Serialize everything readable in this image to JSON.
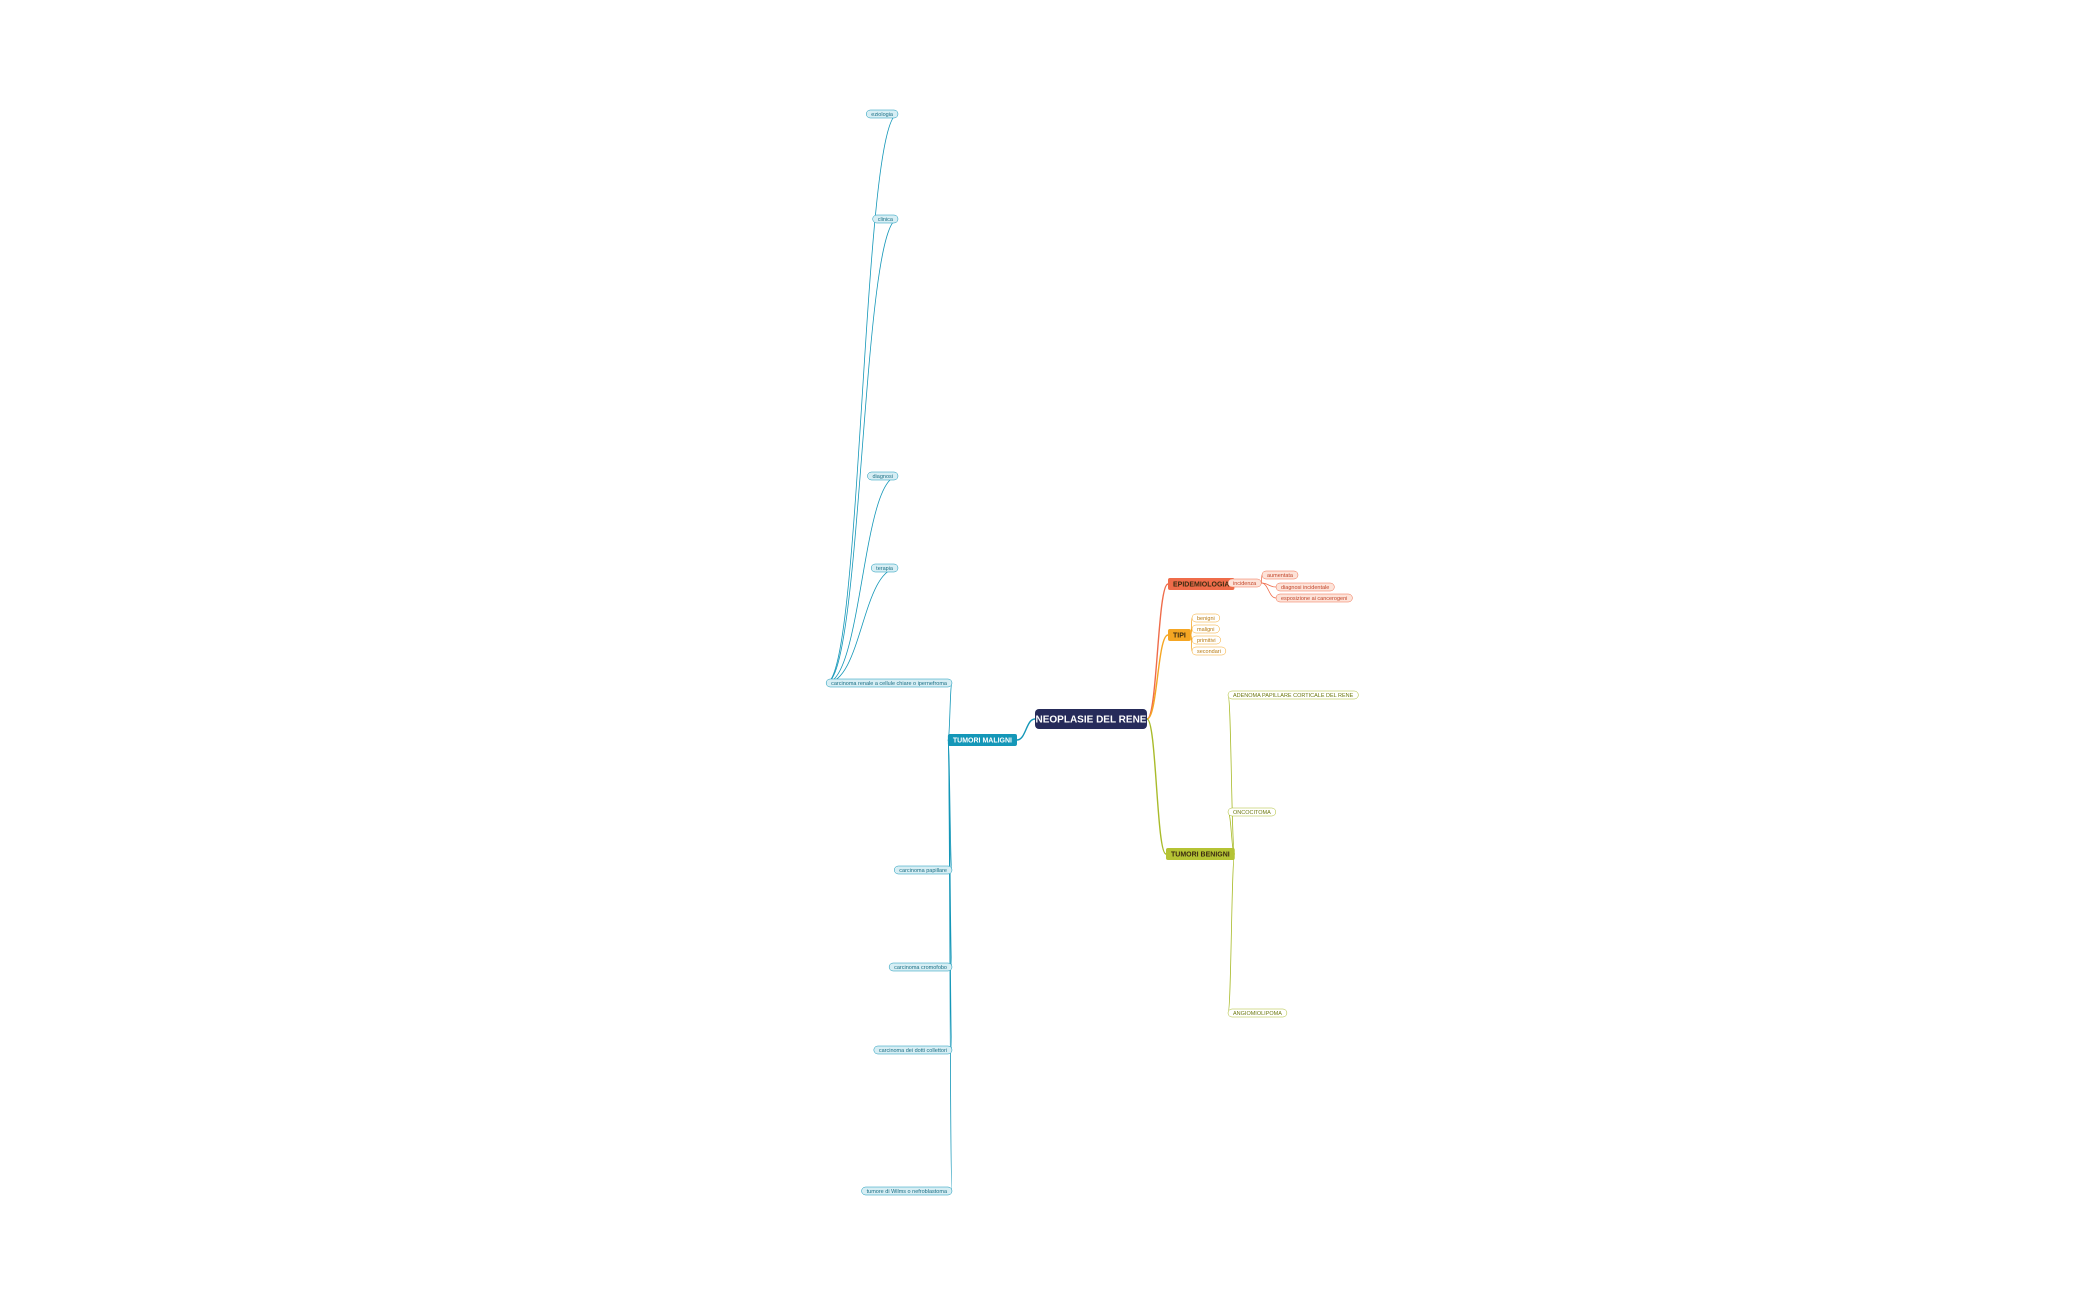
{
  "root": "NEOPLASIE DEL RENE",
  "branches": [
    {
      "label": "EPIDEMIOLOGIA",
      "children": [
        {
          "label": "incidenza",
          "children": [
            {
              "label": "aumentata"
            },
            {
              "label": "diagnosi incidentale"
            },
            {
              "label": "esposizione ai cancerogeni"
            }
          ]
        }
      ]
    },
    {
      "label": "TIPI",
      "children": [
        {
          "label": "benigni"
        },
        {
          "label": "maligni"
        },
        {
          "label": "primitivi"
        },
        {
          "label": "secondari"
        }
      ]
    },
    {
      "label": "TUMORI BENIGNI",
      "children": [
        {
          "label": "ADENOMA PAPILLARE CORTICALE DEL RENE"
        },
        {
          "label": "ONCOCITOMA"
        },
        {
          "label": "ANGIOMIOLIPOMA"
        }
      ]
    },
    {
      "label": "TUMORI MALIGNI",
      "children": [
        {
          "label": "carcinoma renale a cellule chiare o ipernefroma",
          "children": [
            {
              "label": "eziologia"
            },
            {
              "label": "clinica"
            },
            {
              "label": "diagnosi"
            },
            {
              "label": "terapia"
            }
          ]
        },
        {
          "label": "carcinoma papillare"
        },
        {
          "label": "carcinoma cromofobo"
        },
        {
          "label": "carcinoma dei dotti collettori"
        },
        {
          "label": "tumore di Wilms o nefroblastoma"
        }
      ]
    }
  ]
}
